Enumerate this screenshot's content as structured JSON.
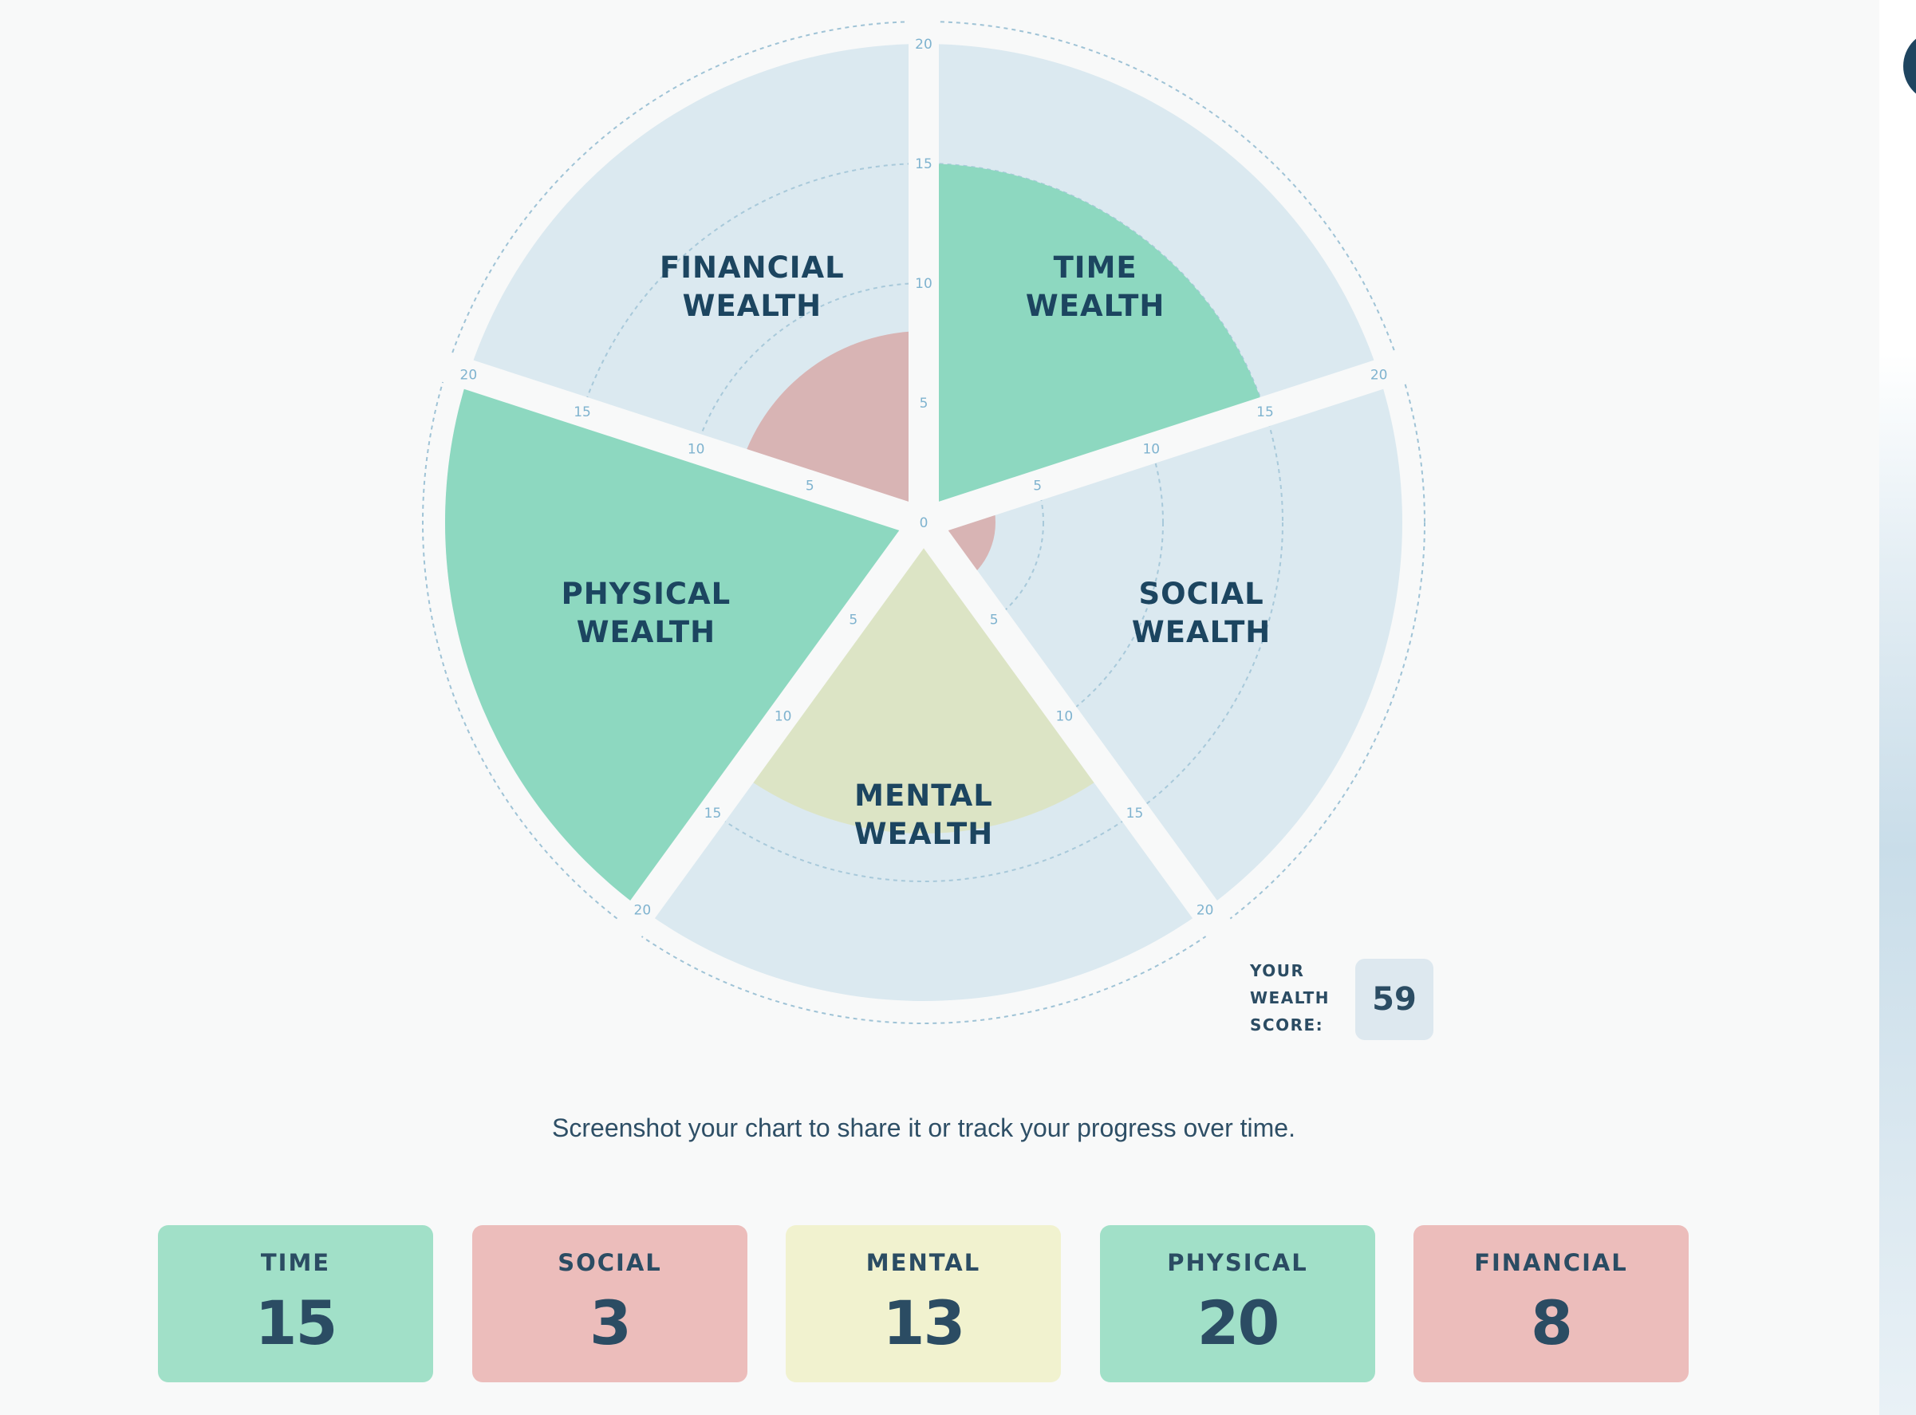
{
  "chart_data": {
    "type": "polar-area",
    "segments": [
      {
        "name": "TIME WEALTH",
        "lines": [
          "TIME",
          "WEALTH"
        ],
        "value": 15
      },
      {
        "name": "SOCIAL WEALTH",
        "lines": [
          "SOCIAL",
          "WEALTH"
        ],
        "value": 3
      },
      {
        "name": "MENTAL WEALTH",
        "lines": [
          "MENTAL",
          "WEALTH"
        ],
        "value": 13
      },
      {
        "name": "PHYSICAL WEALTH",
        "lines": [
          "PHYSICAL",
          "WEALTH"
        ],
        "value": 20
      },
      {
        "name": "FINANCIAL WEALTH",
        "lines": [
          "FINANCIAL",
          "WEALTH"
        ],
        "value": 8
      }
    ],
    "rmax": 20,
    "ticks": [
      5,
      10,
      15,
      20
    ],
    "center_tick": "0",
    "grid": true
  },
  "score": {
    "label_lines": [
      "YOUR",
      "WEALTH",
      "SCORE:"
    ],
    "value": "59"
  },
  "share_text": "Screenshot your chart to share it or track your progress over time.",
  "cards": [
    {
      "label": "TIME",
      "value": "15",
      "color": "#a1e0c8"
    },
    {
      "label": "SOCIAL",
      "value": "3",
      "color": "#ecbdbb"
    },
    {
      "label": "MENTAL",
      "value": "13",
      "color": "#f1f2cf"
    },
    {
      "label": "PHYSICAL",
      "value": "20",
      "color": "#a1e0c8"
    },
    {
      "label": "FINANCIAL",
      "value": "8",
      "color": "#ecbdbb"
    }
  ],
  "colors": {
    "segment_background": "#dbe9f0",
    "high": "#8dd8c0",
    "medium": "#dce4c5",
    "low": "#d8b4b4",
    "grid": "#9fc3d6",
    "tick": "#7fb3cf",
    "page_background": "#f8f9f9"
  }
}
